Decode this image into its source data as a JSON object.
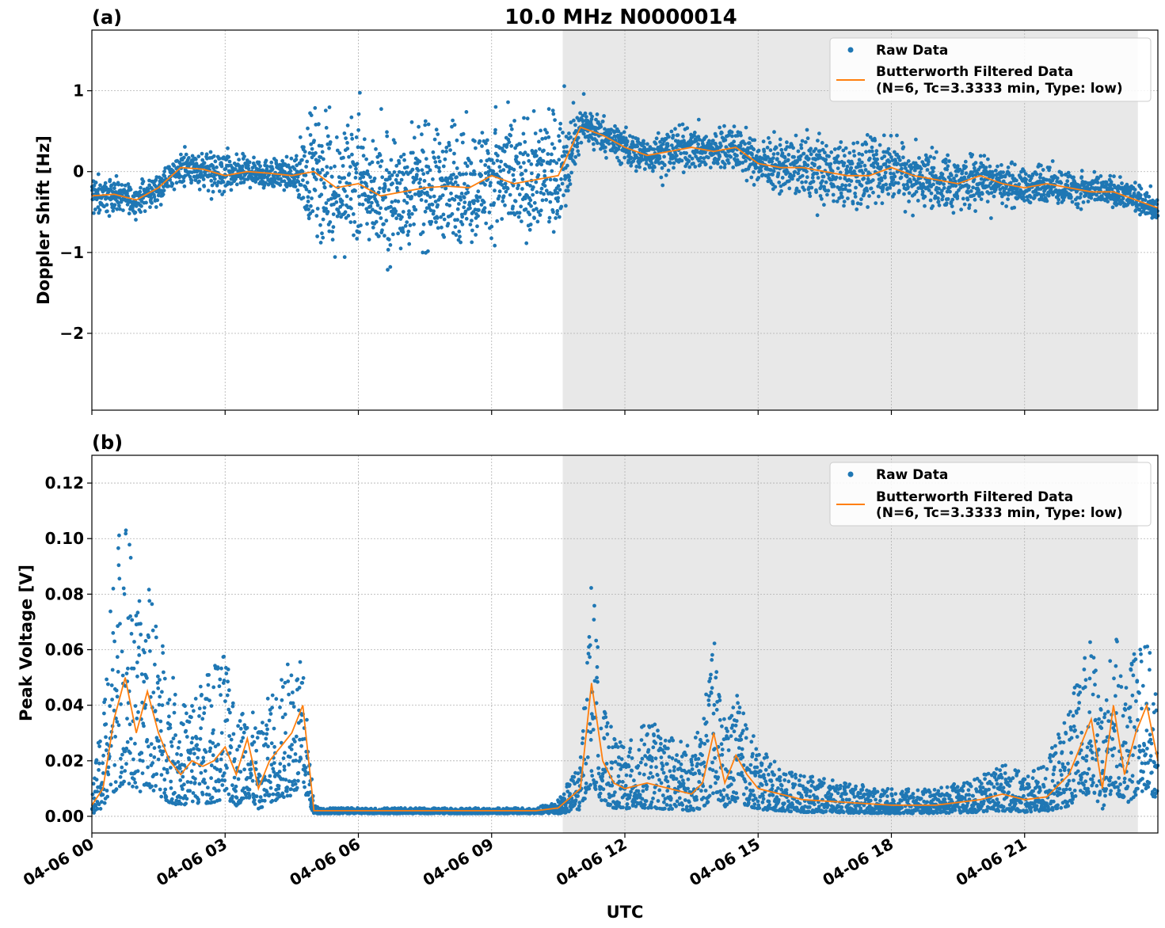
{
  "figure": {
    "title": "10.0 MHz N0000014",
    "xlabel": "UTC",
    "x_tick_labels": [
      "04-06 00",
      "04-06 03",
      "04-06 06",
      "04-06 09",
      "04-06 12",
      "04-06 15",
      "04-06 18",
      "04-06 21"
    ],
    "shaded_region": {
      "start_hour": 10.6,
      "end_hour": 23.55,
      "color": "#e8e8e8"
    },
    "colors": {
      "raw": "#1f77b4",
      "filtered": "#ff7f0e",
      "grid": "#b0b0b0"
    },
    "legend": {
      "raw_label": "Raw Data",
      "filtered_label_line1": "Butterworth Filtered Data",
      "filtered_label_line2": "(N=6, Tc=3.3333 min, Type: low)",
      "placement": "upper right"
    }
  },
  "chart_data": [
    {
      "type": "scatter",
      "panel_label": "(a)",
      "ylabel": "Doppler Shift [Hz]",
      "xlim_hours": [
        0,
        24
      ],
      "ylim": [
        -2.95,
        1.75
      ],
      "y_ticks": [
        1,
        0,
        -1,
        -2
      ],
      "y_tick_labels": [
        "1",
        "0",
        "−1",
        "−2"
      ],
      "grid": true,
      "series": [
        {
          "name": "Butterworth Filtered Data",
          "type": "line",
          "x_hours": [
            0.0,
            0.5,
            1.0,
            1.5,
            2.0,
            2.5,
            3.0,
            3.5,
            4.0,
            4.5,
            5.0,
            5.5,
            6.0,
            6.5,
            7.0,
            7.5,
            8.0,
            8.5,
            9.0,
            9.5,
            10.0,
            10.5,
            11.0,
            11.5,
            12.0,
            12.5,
            13.0,
            13.5,
            14.0,
            14.5,
            15.0,
            15.5,
            16.0,
            16.5,
            17.0,
            17.5,
            18.0,
            18.5,
            19.0,
            19.5,
            20.0,
            20.5,
            21.0,
            21.5,
            22.0,
            22.5,
            23.0,
            23.5,
            24.0
          ],
          "values": [
            -0.3,
            -0.28,
            -0.35,
            -0.2,
            0.05,
            0.03,
            -0.05,
            0.0,
            -0.02,
            -0.05,
            0.0,
            -0.2,
            -0.15,
            -0.3,
            -0.25,
            -0.2,
            -0.18,
            -0.2,
            -0.05,
            -0.15,
            -0.1,
            -0.05,
            0.55,
            0.45,
            0.3,
            0.2,
            0.25,
            0.3,
            0.25,
            0.3,
            0.1,
            0.05,
            0.05,
            0.0,
            -0.05,
            -0.05,
            0.05,
            -0.05,
            -0.1,
            -0.15,
            -0.05,
            -0.15,
            -0.2,
            -0.15,
            -0.2,
            -0.25,
            -0.25,
            -0.35,
            -0.45
          ]
        },
        {
          "name": "Raw Data",
          "type": "scatter",
          "x_hours": [
            0.0,
            0.5,
            1.0,
            1.5,
            2.0,
            2.5,
            3.0,
            3.5,
            4.0,
            4.5,
            5.0,
            5.5,
            6.0,
            6.5,
            7.0,
            7.5,
            8.0,
            8.5,
            9.0,
            9.5,
            10.0,
            10.5,
            11.0,
            11.5,
            12.0,
            12.5,
            13.0,
            13.5,
            14.0,
            14.5,
            15.0,
            15.5,
            16.0,
            16.5,
            17.0,
            17.5,
            18.0,
            18.5,
            19.0,
            19.5,
            20.0,
            20.5,
            21.0,
            21.5,
            22.0,
            22.5,
            23.0,
            23.5,
            24.0
          ],
          "spread": [
            0.3,
            0.2,
            0.2,
            0.2,
            0.2,
            0.25,
            0.3,
            0.2,
            0.2,
            0.2,
            0.8,
            0.8,
            0.8,
            0.8,
            0.8,
            0.8,
            0.8,
            0.8,
            0.8,
            0.8,
            0.8,
            0.8,
            0.3,
            0.25,
            0.25,
            0.25,
            0.3,
            0.3,
            0.3,
            0.3,
            0.3,
            0.3,
            0.45,
            0.45,
            0.45,
            0.45,
            0.45,
            0.45,
            0.45,
            0.4,
            0.35,
            0.3,
            0.25,
            0.25,
            0.25,
            0.2,
            0.2,
            0.2,
            0.15
          ]
        }
      ]
    },
    {
      "type": "scatter",
      "panel_label": "(b)",
      "ylabel": "Peak Voltage [V]",
      "xlim_hours": [
        0,
        24
      ],
      "ylim": [
        -0.006,
        0.13
      ],
      "y_ticks": [
        0.0,
        0.02,
        0.04,
        0.06,
        0.08,
        0.1,
        0.12
      ],
      "y_tick_labels": [
        "0.00",
        "0.02",
        "0.04",
        "0.06",
        "0.08",
        "0.10",
        "0.12"
      ],
      "grid": true,
      "series": [
        {
          "name": "Butterworth Filtered Data",
          "type": "line",
          "x_hours": [
            0.0,
            0.25,
            0.5,
            0.75,
            1.0,
            1.25,
            1.5,
            1.75,
            2.0,
            2.25,
            2.5,
            2.75,
            3.0,
            3.25,
            3.5,
            3.75,
            4.0,
            4.25,
            4.5,
            4.75,
            5.0,
            5.25,
            5.5,
            6.0,
            7.0,
            8.0,
            9.0,
            10.0,
            10.5,
            11.0,
            11.25,
            11.5,
            11.75,
            12.0,
            12.5,
            13.0,
            13.5,
            13.75,
            14.0,
            14.25,
            14.5,
            14.75,
            15.0,
            15.5,
            16.0,
            17.0,
            18.0,
            19.0,
            20.0,
            20.5,
            21.0,
            21.5,
            22.0,
            22.5,
            22.75,
            23.0,
            23.25,
            23.5,
            23.75,
            24.0
          ],
          "values": [
            0.004,
            0.01,
            0.035,
            0.05,
            0.03,
            0.045,
            0.03,
            0.02,
            0.015,
            0.02,
            0.018,
            0.02,
            0.025,
            0.015,
            0.028,
            0.01,
            0.02,
            0.025,
            0.03,
            0.04,
            0.002,
            0.002,
            0.002,
            0.002,
            0.002,
            0.002,
            0.002,
            0.002,
            0.003,
            0.01,
            0.048,
            0.02,
            0.012,
            0.01,
            0.012,
            0.01,
            0.008,
            0.012,
            0.03,
            0.012,
            0.022,
            0.015,
            0.01,
            0.008,
            0.006,
            0.005,
            0.004,
            0.004,
            0.006,
            0.008,
            0.006,
            0.007,
            0.015,
            0.035,
            0.01,
            0.04,
            0.015,
            0.03,
            0.04,
            0.02
          ]
        },
        {
          "name": "Raw Data",
          "type": "scatter",
          "x_hours": [
            0.0,
            0.25,
            0.5,
            0.75,
            1.0,
            1.25,
            1.5,
            1.75,
            2.0,
            2.25,
            2.5,
            2.75,
            3.0,
            3.25,
            3.5,
            3.75,
            4.0,
            4.25,
            4.5,
            4.75,
            5.0,
            5.25,
            5.5,
            6.0,
            7.0,
            8.0,
            9.0,
            10.0,
            10.5,
            11.0,
            11.25,
            11.5,
            11.75,
            12.0,
            12.5,
            13.0,
            13.5,
            13.75,
            14.0,
            14.25,
            14.5,
            14.75,
            15.0,
            15.5,
            16.0,
            17.0,
            18.0,
            19.0,
            20.0,
            20.5,
            21.0,
            21.5,
            22.0,
            22.5,
            22.75,
            23.0,
            23.25,
            23.5,
            23.75,
            24.0
          ],
          "max": [
            0.008,
            0.04,
            0.095,
            0.12,
            0.075,
            0.085,
            0.07,
            0.055,
            0.04,
            0.045,
            0.05,
            0.055,
            0.06,
            0.035,
            0.045,
            0.03,
            0.045,
            0.05,
            0.06,
            0.055,
            0.004,
            0.003,
            0.003,
            0.003,
            0.003,
            0.003,
            0.003,
            0.003,
            0.006,
            0.02,
            0.09,
            0.04,
            0.03,
            0.025,
            0.035,
            0.03,
            0.025,
            0.035,
            0.065,
            0.035,
            0.045,
            0.035,
            0.025,
            0.018,
            0.015,
            0.012,
            0.01,
            0.01,
            0.014,
            0.02,
            0.015,
            0.02,
            0.04,
            0.065,
            0.035,
            0.07,
            0.05,
            0.06,
            0.065,
            0.045
          ]
        }
      ]
    }
  ]
}
